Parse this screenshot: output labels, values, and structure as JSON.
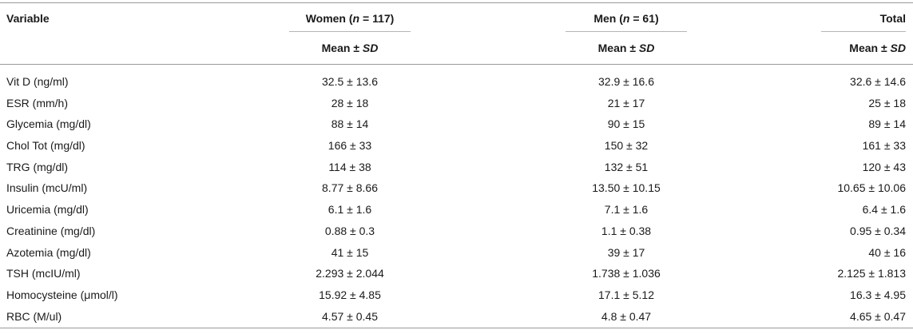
{
  "header": {
    "variable": "Variable",
    "women_prefix": "Women (",
    "women_n": "n",
    "women_suffix": " = 117)",
    "men_prefix": "Men (",
    "men_n": "n",
    "men_suffix": " = 61)",
    "total": "Total",
    "mean_prefix": "Mean ± ",
    "mean_sd": "SD"
  },
  "rows": [
    {
      "variable": "Vit D (ng/ml)",
      "women": "32.5 ± 13.6",
      "men": "32.9 ± 16.6",
      "total": "32.6 ± 14.6"
    },
    {
      "variable": "ESR (mm/h)",
      "women": "28 ± 18",
      "men": "21 ± 17",
      "total": "25 ± 18"
    },
    {
      "variable": "Glycemia (mg/dl)",
      "women": "88 ± 14",
      "men": "90 ± 15",
      "total": "89 ± 14"
    },
    {
      "variable": "Chol Tot (mg/dl)",
      "women": "166 ± 33",
      "men": "150 ± 32",
      "total": "161 ± 33"
    },
    {
      "variable": "TRG (mg/dl)",
      "women": "114 ± 38",
      "men": "132 ± 51",
      "total": "120 ± 43"
    },
    {
      "variable": "Insulin (mcU/ml)",
      "women": "8.77 ± 8.66",
      "men": "13.50 ± 10.15",
      "total": "10.65 ± 10.06"
    },
    {
      "variable": "Uricemia (mg/dl)",
      "women": "6.1 ± 1.6",
      "men": "7.1 ± 1.6",
      "total": "6.4 ± 1.6"
    },
    {
      "variable": "Creatinine (mg/dl)",
      "women": "0.88 ± 0.3",
      "men": "1.1 ± 0.38",
      "total": "0.95 ± 0.34"
    },
    {
      "variable": "Azotemia (mg/dl)",
      "women": "41 ± 15",
      "men": "39 ± 17",
      "total": "40 ± 16"
    },
    {
      "variable": "TSH (mcIU/ml)",
      "women": "2.293 ± 2.044",
      "men": "1.738 ± 1.036",
      "total": "2.125 ± 1.813"
    },
    {
      "variable": "Homocysteine (μmol/l)",
      "women": "15.92 ± 4.85",
      "men": "17.1 ± 5.12",
      "total": "16.3 ± 4.95"
    },
    {
      "variable": "RBC (M/ul)",
      "women": "4.57 ± 0.45",
      "men": "4.8 ± 0.47",
      "total": "4.65 ± 0.47"
    }
  ]
}
